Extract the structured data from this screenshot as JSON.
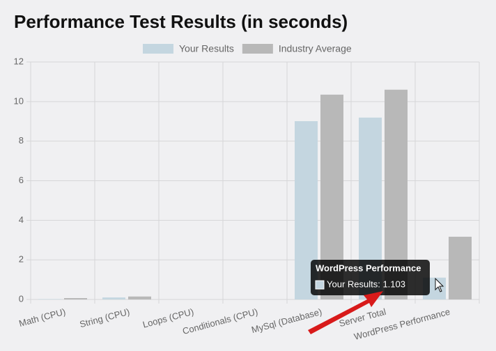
{
  "chart_data": {
    "type": "bar",
    "title": "Performance Test Results (in seconds)",
    "categories": [
      "Math (CPU)",
      "String (CPU)",
      "Loops (CPU)",
      "Conditionals (CPU)",
      "MySql (Database)",
      "Server Total",
      "WordPress Performance"
    ],
    "series": [
      {
        "name": "Your Results",
        "color": "#c4d6e0",
        "values": [
          0.02,
          0.1,
          0,
          0,
          9.01,
          9.19,
          1.103
        ]
      },
      {
        "name": "Industry Average",
        "color": "#b8b8b8",
        "values": [
          0.07,
          0.15,
          0,
          0,
          10.35,
          10.6,
          3.17
        ]
      }
    ],
    "ylim": [
      0,
      12
    ],
    "yticks": [
      0,
      2,
      4,
      6,
      8,
      10,
      12
    ],
    "grid": true,
    "legend": "top",
    "tooltip": {
      "title": "WordPress Performance",
      "label": "Your Results: 1.103",
      "series": 0,
      "index": 6
    }
  }
}
